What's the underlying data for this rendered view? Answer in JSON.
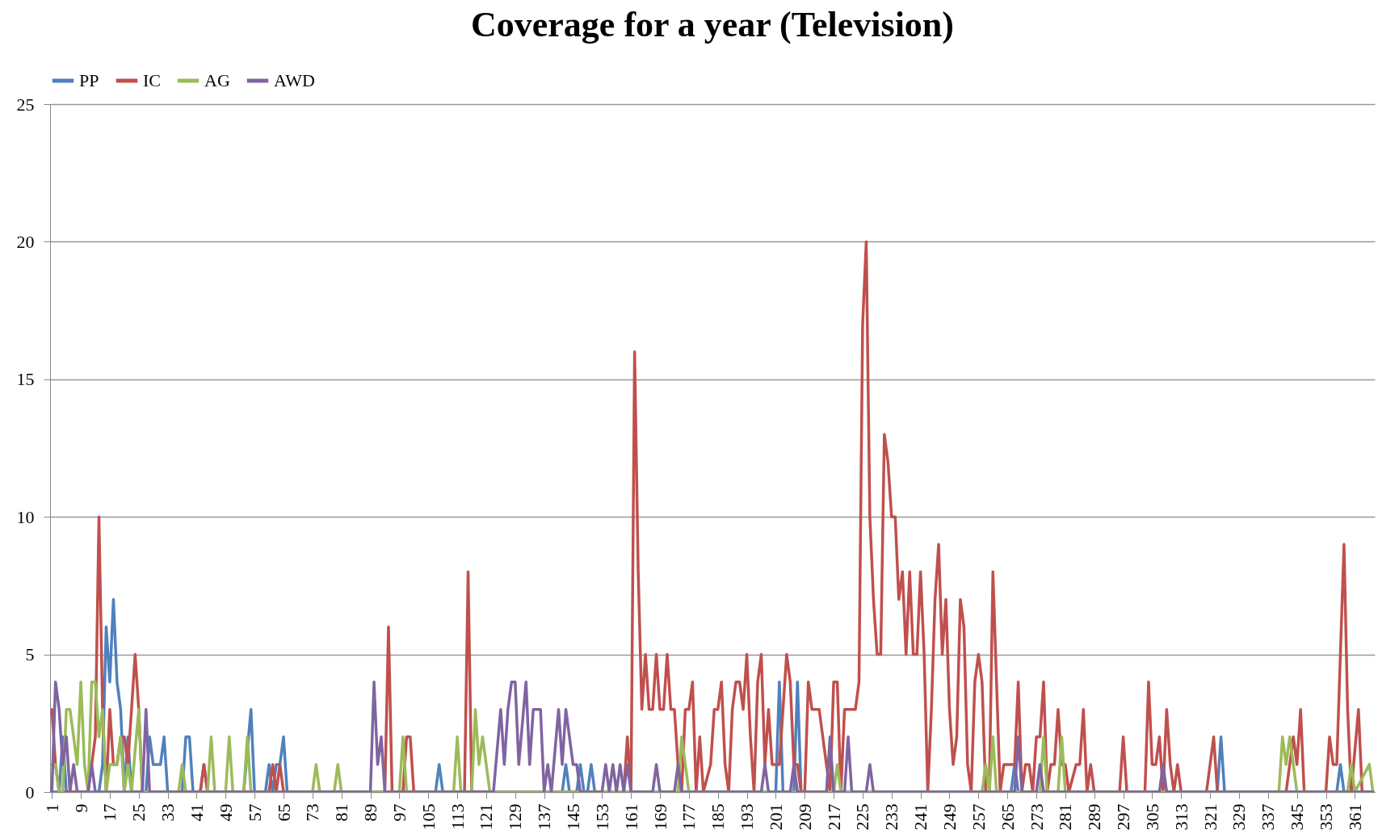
{
  "chart_data": {
    "type": "line",
    "title": "Coverage for a year (Television)",
    "xlim": [
      0.5,
      366.5
    ],
    "xticks": [
      1,
      9,
      17,
      25,
      33,
      41,
      49,
      57,
      65,
      73,
      81,
      89,
      97,
      105,
      113,
      121,
      129,
      137,
      145,
      153,
      161,
      169,
      177,
      185,
      193,
      201,
      209,
      217,
      225,
      233,
      241,
      249,
      257,
      265,
      273,
      281,
      289,
      297,
      305,
      313,
      321,
      329,
      337,
      345,
      353,
      361
    ],
    "ylim": [
      0,
      25
    ],
    "yticks": [
      0,
      5,
      10,
      15,
      20,
      25
    ],
    "grid": "y",
    "legend": "top",
    "line_style": "solid",
    "series": [
      {
        "name": "PP",
        "color": "#4f81bd",
        "x": [
          1,
          3,
          4,
          5,
          14,
          15,
          16,
          17,
          18,
          19,
          20,
          21,
          22,
          23,
          27,
          28,
          29,
          30,
          31,
          32,
          33,
          37,
          38,
          39,
          40,
          42,
          43,
          44,
          54,
          56,
          57,
          60,
          61,
          62,
          63,
          64,
          65,
          66,
          107,
          108,
          109,
          142,
          143,
          144,
          146,
          147,
          148,
          149,
          150,
          151,
          201,
          202,
          203,
          206,
          207,
          208,
          266,
          267,
          268,
          323,
          324,
          325,
          356,
          357,
          358,
          366
        ],
        "values": [
          0,
          0,
          2,
          0,
          0,
          1,
          6,
          4,
          7,
          4,
          3,
          0,
          2,
          0,
          0,
          2,
          1,
          1,
          1,
          2,
          0,
          0,
          2,
          2,
          0,
          0,
          1,
          0,
          0,
          3,
          0,
          0,
          1,
          0,
          1,
          1,
          2,
          0,
          0,
          1,
          0,
          0,
          1,
          0,
          0,
          1,
          0,
          0,
          1,
          0,
          0,
          4,
          0,
          0,
          4,
          0,
          0,
          1,
          0,
          0,
          2,
          0,
          0,
          1,
          0,
          0
        ]
      },
      {
        "name": "IC",
        "color": "#c0504d",
        "x": [
          1,
          2,
          3,
          11,
          12,
          13,
          14,
          15,
          16,
          17,
          18,
          19,
          20,
          21,
          22,
          23,
          24,
          25,
          26,
          42,
          43,
          44,
          61,
          62,
          63,
          64,
          65,
          93,
          94,
          95,
          98,
          99,
          100,
          101,
          115,
          116,
          117,
          159,
          160,
          161,
          162,
          163,
          164,
          165,
          166,
          167,
          168,
          169,
          170,
          171,
          172,
          173,
          174,
          175,
          176,
          177,
          178,
          179,
          180,
          181,
          183,
          184,
          185,
          186,
          187,
          188,
          189,
          190,
          191,
          192,
          193,
          194,
          195,
          196,
          197,
          198,
          199,
          200,
          202,
          203,
          204,
          205,
          206,
          207,
          208,
          209,
          210,
          211,
          212,
          213,
          215,
          216,
          217,
          218,
          219,
          220,
          221,
          222,
          223,
          224,
          225,
          226,
          227,
          228,
          229,
          230,
          231,
          232,
          233,
          234,
          235,
          236,
          237,
          238,
          239,
          240,
          241,
          242,
          243,
          244,
          245,
          246,
          247,
          248,
          249,
          250,
          251,
          252,
          253,
          254,
          255,
          256,
          257,
          258,
          259,
          260,
          261,
          262,
          263,
          264,
          267,
          268,
          269,
          270,
          271,
          272,
          273,
          274,
          275,
          276,
          277,
          278,
          279,
          280,
          281,
          282,
          284,
          285,
          286,
          287,
          288,
          289,
          296,
          297,
          298,
          303,
          304,
          305,
          306,
          307,
          308,
          309,
          310,
          311,
          312,
          313,
          320,
          321,
          322,
          323,
          342,
          344,
          345,
          346,
          347,
          353,
          354,
          355,
          356,
          358,
          359,
          360,
          362,
          363,
          366
        ],
        "values": [
          3,
          1,
          0,
          0,
          1,
          2,
          10,
          3,
          0,
          3,
          1,
          1,
          2,
          2,
          1,
          3,
          5,
          3,
          0,
          0,
          1,
          0,
          0,
          1,
          0,
          1,
          0,
          0,
          6,
          0,
          0,
          2,
          2,
          0,
          0,
          8,
          0,
          0,
          2,
          0,
          16,
          8,
          3,
          5,
          3,
          3,
          5,
          3,
          3,
          5,
          3,
          3,
          1,
          0,
          3,
          3,
          4,
          0,
          2,
          0,
          1,
          3,
          3,
          4,
          1,
          0,
          3,
          4,
          4,
          3,
          5,
          2,
          0,
          4,
          5,
          1,
          3,
          1,
          1,
          3,
          5,
          4,
          1,
          1,
          0,
          0,
          4,
          3,
          3,
          3,
          1,
          0,
          4,
          4,
          0,
          3,
          3,
          3,
          3,
          4,
          17,
          20,
          10,
          7,
          5,
          5,
          13,
          12,
          10,
          10,
          7,
          8,
          5,
          8,
          5,
          5,
          8,
          5,
          0,
          3,
          7,
          9,
          5,
          7,
          3,
          1,
          2,
          7,
          6,
          1,
          0,
          4,
          5,
          4,
          0,
          0,
          8,
          4,
          0,
          1,
          1,
          4,
          0,
          1,
          1,
          0,
          2,
          2,
          4,
          0,
          1,
          1,
          3,
          1,
          1,
          0,
          1,
          1,
          3,
          0,
          1,
          0,
          0,
          2,
          0,
          0,
          4,
          1,
          1,
          2,
          0,
          3,
          1,
          0,
          1,
          0,
          0,
          1,
          2,
          0,
          0,
          2,
          1,
          3,
          0,
          0,
          2,
          1,
          1,
          9,
          3,
          0,
          3,
          0,
          0
        ]
      },
      {
        "name": "AG",
        "color": "#9bbb59",
        "x": [
          1,
          2,
          3,
          4,
          5,
          6,
          7,
          8,
          9,
          10,
          11,
          12,
          13,
          14,
          15,
          16,
          17,
          18,
          19,
          20,
          21,
          22,
          23,
          25,
          26,
          36,
          37,
          38,
          44,
          45,
          46,
          49,
          50,
          51,
          54,
          55,
          56,
          73,
          74,
          75,
          79,
          80,
          81,
          97,
          98,
          99,
          112,
          113,
          114,
          117,
          118,
          119,
          120,
          122,
          174,
          175,
          177,
          217,
          218,
          219,
          258,
          259,
          260,
          261,
          262,
          274,
          275,
          276,
          279,
          280,
          281,
          340,
          341,
          342,
          343,
          345,
          359,
          360,
          361,
          365,
          366
        ],
        "values": [
          1,
          1,
          0,
          0,
          3,
          3,
          2,
          1,
          4,
          1,
          0,
          4,
          4,
          2,
          3,
          0,
          1,
          1,
          1,
          2,
          0,
          1,
          0,
          3,
          0,
          0,
          1,
          0,
          0,
          2,
          0,
          0,
          2,
          0,
          0,
          2,
          0,
          0,
          1,
          0,
          0,
          1,
          0,
          0,
          2,
          0,
          0,
          2,
          0,
          0,
          3,
          1,
          2,
          0,
          0,
          2,
          0,
          0,
          1,
          0,
          0,
          1,
          0,
          2,
          0,
          0,
          2,
          0,
          0,
          2,
          0,
          0,
          2,
          1,
          2,
          0,
          0,
          1,
          0,
          1,
          0
        ]
      },
      {
        "name": "AWD",
        "color": "#8064a2",
        "x": [
          1,
          2,
          3,
          4,
          5,
          6,
          7,
          8,
          11,
          12,
          13,
          26,
          27,
          28,
          89,
          90,
          91,
          92,
          93,
          123,
          125,
          126,
          127,
          128,
          129,
          130,
          132,
          133,
          134,
          136,
          137,
          138,
          139,
          141,
          142,
          143,
          145,
          146,
          147,
          153,
          154,
          155,
          156,
          157,
          158,
          159,
          160,
          161,
          167,
          168,
          169,
          173,
          174,
          175,
          197,
          198,
          199,
          205,
          206,
          207,
          215,
          216,
          217,
          220,
          221,
          222,
          226,
          227,
          228,
          267,
          268,
          269,
          273,
          274,
          275,
          307,
          308,
          309,
          366
        ],
        "values": [
          0,
          4,
          3,
          1,
          2,
          0,
          1,
          0,
          0,
          1,
          0,
          0,
          3,
          0,
          0,
          4,
          1,
          2,
          0,
          0,
          3,
          1,
          3,
          4,
          4,
          1,
          4,
          1,
          3,
          3,
          0,
          1,
          0,
          3,
          1,
          3,
          1,
          1,
          0,
          0,
          1,
          0,
          1,
          0,
          1,
          0,
          1,
          0,
          0,
          1,
          0,
          0,
          1,
          0,
          0,
          1,
          0,
          0,
          1,
          0,
          0,
          2,
          0,
          0,
          2,
          0,
          0,
          1,
          0,
          0,
          2,
          0,
          0,
          1,
          0,
          0,
          1,
          0,
          0
        ]
      }
    ]
  }
}
